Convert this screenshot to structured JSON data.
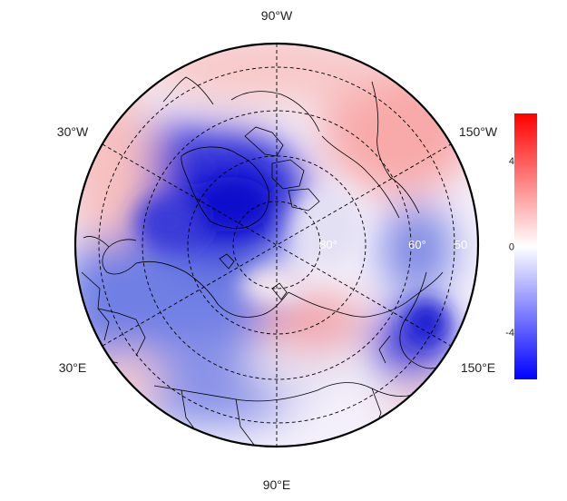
{
  "map": {
    "projection": "north-polar-stereographic",
    "longitude_labels": {
      "top": "90°W",
      "upper_left": "30°W",
      "upper_right": "150°W",
      "lower_left": "30°E",
      "lower_right": "150°E",
      "bottom": "90°E"
    },
    "latitude_labels": [
      "80°",
      "60°",
      "50"
    ],
    "features": [
      "coastlines",
      "country borders",
      "graticule (dashed)"
    ],
    "field_description": "anomaly field: strong negative over Greenland/Canadian Arctic and NE Asia; positive over Alaska/Pacific sector and near pole"
  },
  "colorbar": {
    "ticks": [
      "4",
      "0",
      "-4"
    ],
    "tick_values": [
      4,
      0,
      -4
    ],
    "range": [
      -6.2,
      6.2
    ],
    "colors": {
      "max": "#ff0000",
      "mid": "#ffffff",
      "min": "#0000ff"
    }
  }
}
